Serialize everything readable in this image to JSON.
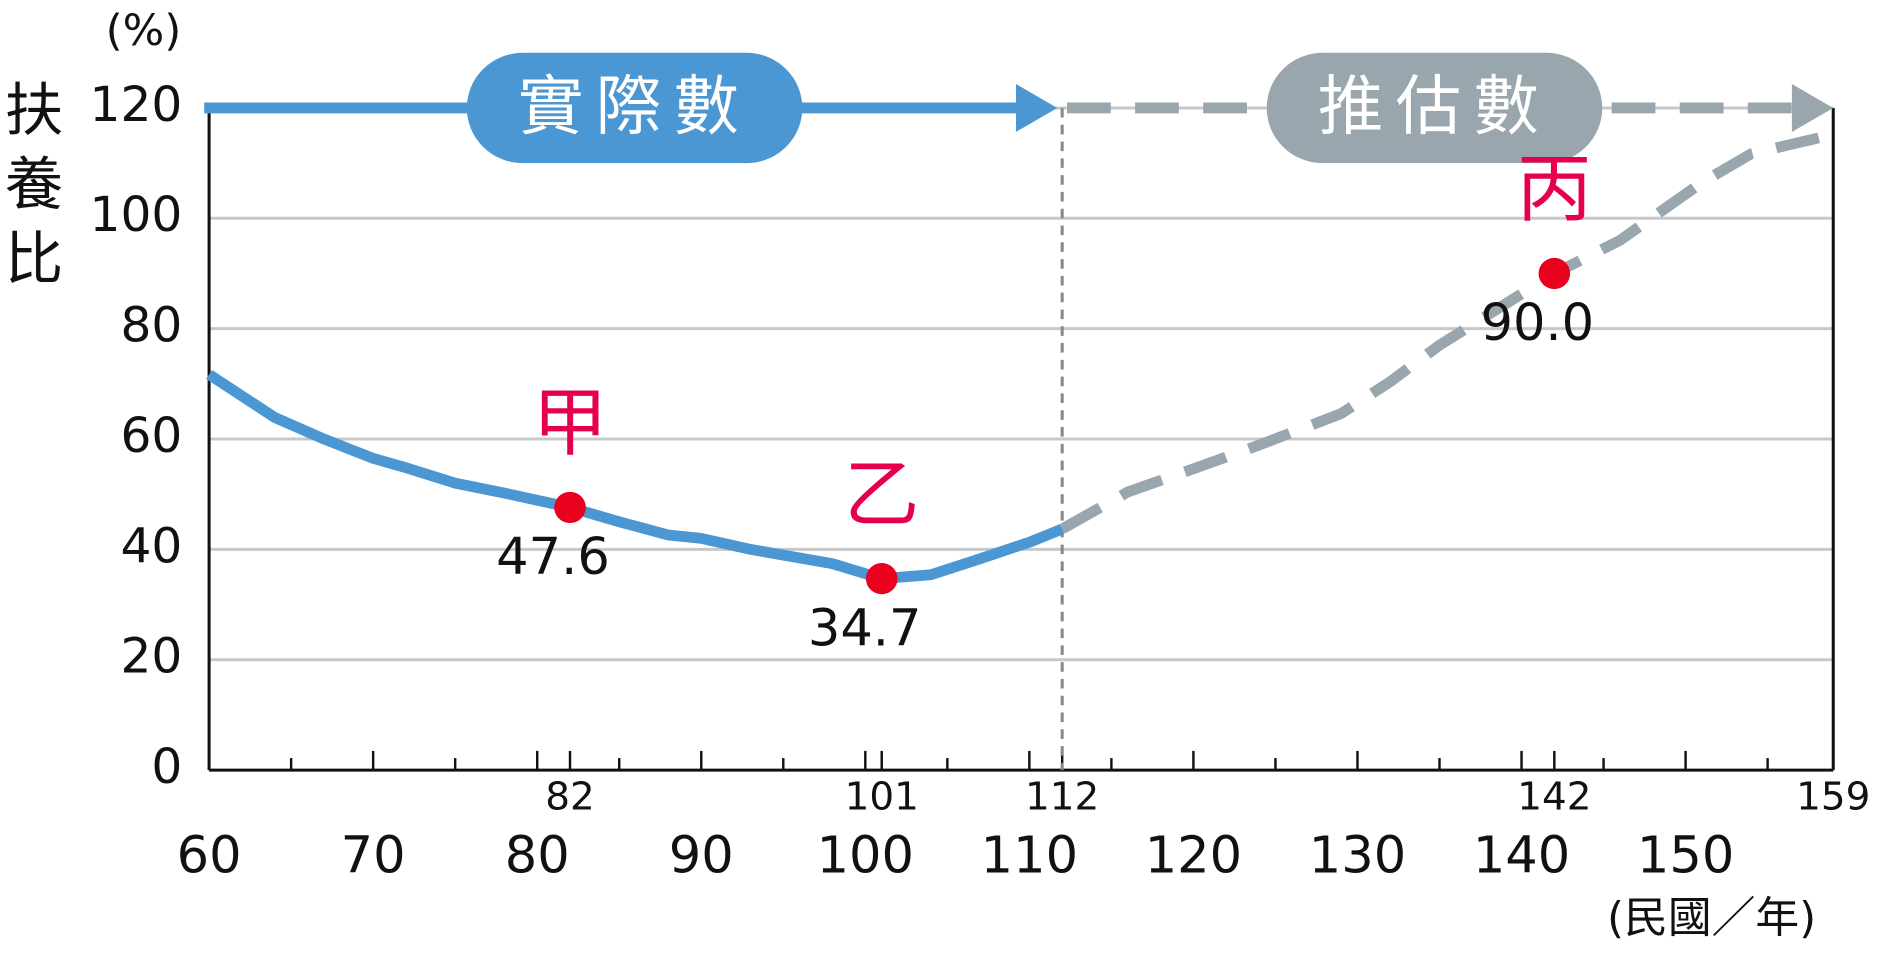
{
  "chart_data": {
    "type": "line",
    "y_label": "扶養比",
    "y_unit": "(%)",
    "x_unit": "(民國／年)",
    "xlim": [
      60,
      159
    ],
    "ylim": [
      0,
      120
    ],
    "yticks": [
      0,
      20,
      40,
      60,
      80,
      100,
      120
    ],
    "xticks": [
      60,
      70,
      80,
      90,
      100,
      110,
      120,
      130,
      140,
      150
    ],
    "xminorticks": [
      65,
      75,
      85,
      95,
      105,
      115,
      125,
      135,
      145,
      155
    ],
    "xticks_highlight": [
      82,
      101,
      112,
      142,
      159
    ],
    "divider_x": 112,
    "grid": true,
    "series": [
      {
        "name": "實際數",
        "color": "#4b97d3",
        "dashed": false,
        "x": [
          60,
          64,
          67,
          70,
          72,
          75,
          78,
          82,
          85,
          88,
          90,
          93,
          98,
          101,
          104,
          107,
          110,
          112
        ],
        "values": [
          71.7,
          63.9,
          60,
          56.5,
          54.8,
          52,
          50.2,
          47.6,
          45,
          42.6,
          42,
          40,
          37.4,
          34.7,
          35.4,
          38.3,
          41.3,
          43.7
        ]
      },
      {
        "name": "推估數",
        "color": "#9aa6ad",
        "dashed": true,
        "x": [
          112,
          116,
          120,
          124,
          129,
          132,
          135,
          138,
          142,
          146,
          151,
          154,
          159
        ],
        "values": [
          43.7,
          50.4,
          54.6,
          58.9,
          64.6,
          70.4,
          77,
          82.6,
          90,
          96,
          106.5,
          111.7,
          115.2
        ]
      }
    ],
    "markers": [
      {
        "label": "甲",
        "x": 82,
        "value": 47.6
      },
      {
        "label": "乙",
        "x": 101,
        "value": 34.7
      },
      {
        "label": "丙",
        "x": 142,
        "value": 90,
        "value_label": "90.0"
      }
    ],
    "marker_color": "#e8001f",
    "marker_label_color": "#e6004c"
  }
}
